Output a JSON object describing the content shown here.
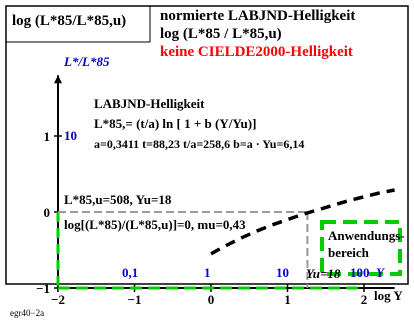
{
  "header": {
    "left_title": "log (L*85/L*85,u)",
    "title_line1": "normierte LABJND-Helligkeit",
    "title_line2": "log (L*85 / L*85,u)",
    "title_line3": "keine CIELDE2000-Helligkeit"
  },
  "y_axis_title": "L*/L*85",
  "formula": {
    "heading": "LABJND-Helligkeit",
    "equation": "L*85,= (t/a) ln [ 1 + b (Y/Yu)]",
    "params": "a=0,3411   t=88,23    t/a=258,6   b=a · Yu=6,14"
  },
  "reference": {
    "line1": "L*85,u=508, Yu=18",
    "line2": "log[(L*85)/(L*85,u)]=0, mu=0,43"
  },
  "legend_box": {
    "line1": "Anwendungs-",
    "line2": "bereich"
  },
  "x_top_labels": [
    "0,1",
    "1",
    "10",
    "Yu=18",
    "100",
    "Y"
  ],
  "y_blue_labels": [
    "10"
  ],
  "footer": "egr40−2a",
  "colors": {
    "blue": "#0000cc",
    "red": "#ff0000",
    "green": "#00cc00",
    "gray": "#999999",
    "black": "#000000"
  },
  "chart_data": {
    "type": "line",
    "xlabel": "log Y",
    "ylabel": "log (L*85/L*85,u)",
    "xlim": [
      -2,
      2.4
    ],
    "ylim": [
      -1,
      1.8
    ],
    "x_ticks": [
      -2,
      -1,
      0,
      1,
      2
    ],
    "x_tick_labels": [
      "−2",
      "−1",
      "0",
      "1",
      "2"
    ],
    "y_ticks": [
      -1,
      0,
      1
    ],
    "y_tick_labels": [
      "−1",
      "0",
      "1"
    ],
    "reference_point": {
      "x": 1.26,
      "y": 0
    },
    "series": [
      {
        "x": [
          0,
          0.2,
          0.4,
          0.6,
          0.8,
          1.0,
          1.2,
          1.4,
          1.6,
          1.8,
          2.0,
          2.2,
          2.4
        ],
        "y": [
          -0.55,
          -0.44,
          -0.34,
          -0.25,
          -0.17,
          -0.1,
          -0.03,
          0.03,
          0.09,
          0.15,
          0.2,
          0.25,
          0.29
        ]
      }
    ]
  }
}
